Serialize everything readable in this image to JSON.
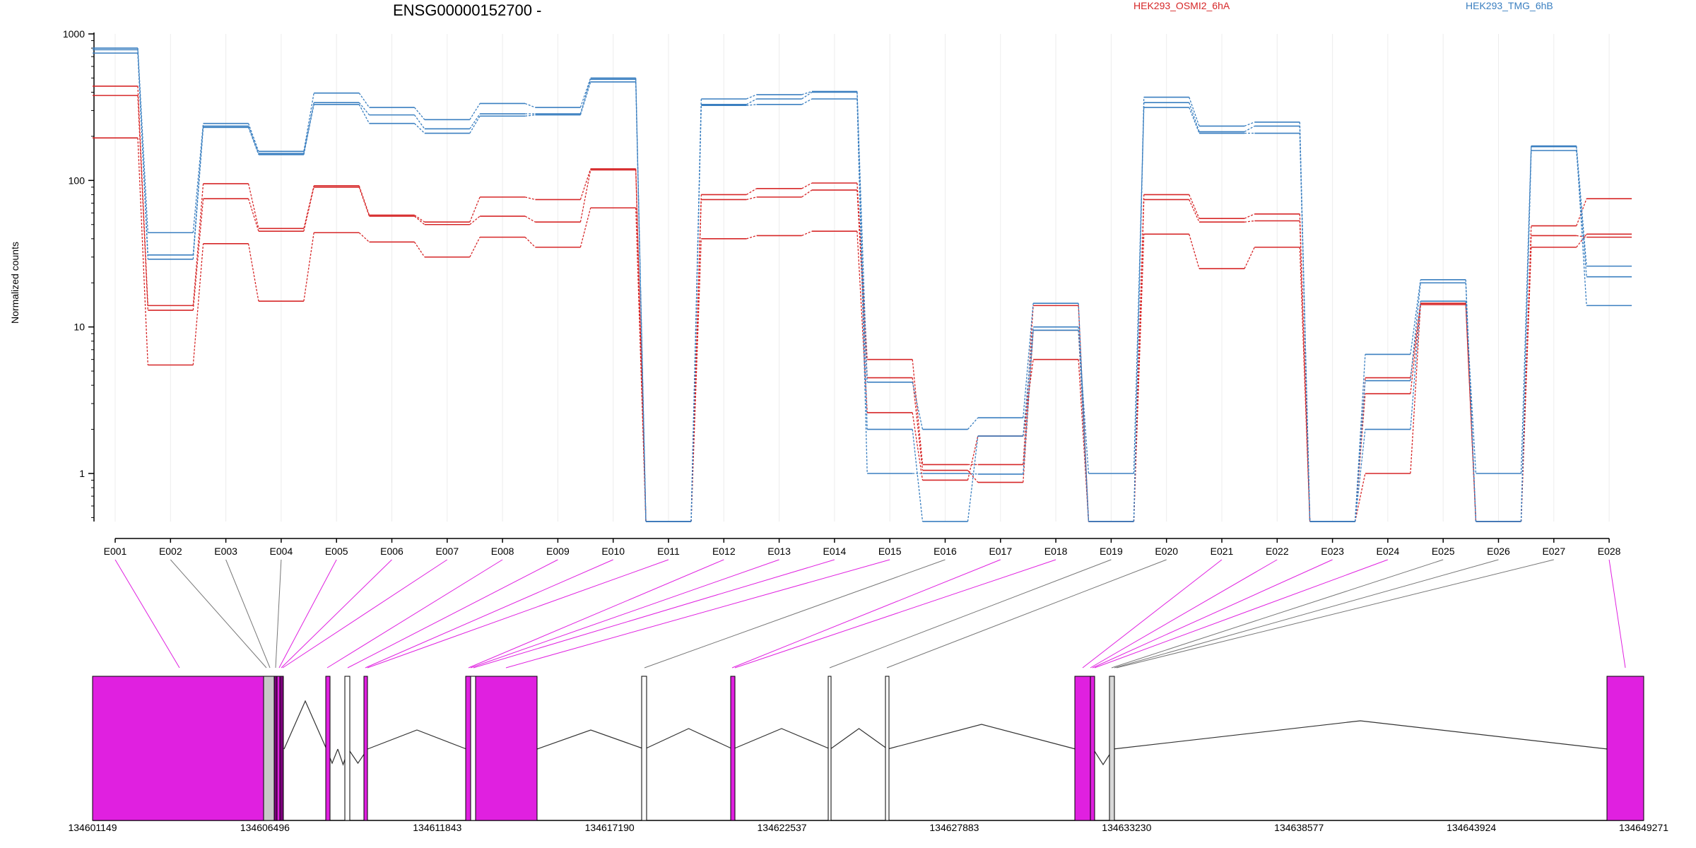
{
  "page": {
    "title": "ENSG00000152700 -",
    "legend": [
      {
        "label": "HEK293_OSMI2_6hA",
        "color": "#d62728"
      },
      {
        "label": "HEK293_TMG_6hB",
        "color": "#3a7fc0"
      }
    ]
  },
  "chart_data": [
    {
      "type": "line",
      "subtype": "step",
      "ylabel": "Normalized counts",
      "yscale": "log",
      "ylim": [
        0.4,
        1000
      ],
      "yticks": [
        "1000",
        "100",
        "10",
        "1"
      ],
      "grid": "vertical",
      "categories": [
        "E001",
        "E002",
        "E003",
        "E004",
        "E005",
        "E006",
        "E007",
        "E008",
        "E009",
        "E010",
        "E011",
        "E012",
        "E013",
        "E014",
        "E015",
        "E016",
        "E017",
        "E018",
        "E019",
        "E020",
        "E021",
        "E022",
        "E023",
        "E024",
        "E025",
        "E026",
        "E027",
        "E028"
      ],
      "series": [
        {
          "group": "HEK293_OSMI2_6hA",
          "color": "#d62728",
          "values": [
            440,
            14,
            95,
            47,
            92,
            58,
            52,
            77,
            74,
            120,
            0.47,
            80,
            88,
            96,
            6,
            1.15,
            1.15,
            14,
            0.47,
            80,
            55,
            59,
            0.47,
            4.5,
            14.5,
            0.47,
            49,
            75
          ]
        },
        {
          "group": "HEK293_OSMI2_6hA",
          "color": "#d62728",
          "values": [
            380,
            13,
            75,
            45,
            90,
            57,
            50,
            57,
            52,
            118,
            0.47,
            74,
            77,
            86,
            4.5,
            1.05,
            0.87,
            9.5,
            0.47,
            74,
            52,
            53,
            0.47,
            3.5,
            14.5,
            0.47,
            42,
            41
          ]
        },
        {
          "group": "HEK293_OSMI2_6hA",
          "color": "#d62728",
          "values": [
            195,
            5.5,
            37,
            15,
            44,
            38,
            30,
            41,
            35,
            65,
            0.47,
            40,
            42,
            45,
            2.6,
            0.9,
            1.8,
            6,
            0.47,
            43,
            25,
            35,
            0.47,
            1,
            14.2,
            0.47,
            35,
            43
          ]
        },
        {
          "group": "HEK293_TMG_6hB",
          "color": "#3a7fc0",
          "values": [
            800,
            44,
            245,
            158,
            395,
            315,
            260,
            335,
            315,
            500,
            0.47,
            360,
            385,
            405,
            4.2,
            2,
            2.4,
            14.5,
            0.47,
            370,
            235,
            250,
            0.47,
            6.5,
            21,
            0.47,
            172,
            26
          ]
        },
        {
          "group": "HEK293_TMG_6hB",
          "color": "#3a7fc0",
          "values": [
            780,
            31,
            235,
            153,
            340,
            280,
            225,
            285,
            285,
            490,
            0.47,
            330,
            360,
            400,
            2,
            0.47,
            1.8,
            10,
            0.47,
            340,
            215,
            235,
            0.47,
            4.3,
            20,
            0.47,
            160,
            22
          ]
        },
        {
          "group": "HEK293_TMG_6hB",
          "color": "#3a7fc0",
          "values": [
            740,
            29,
            230,
            150,
            330,
            245,
            210,
            275,
            280,
            470,
            0.47,
            325,
            330,
            360,
            1,
            1,
            0.99,
            9.5,
            1,
            315,
            210,
            210,
            0.47,
            2,
            15,
            1,
            170,
            14
          ]
        }
      ]
    },
    {
      "type": "gene_model",
      "xlim": [
        134601149,
        134649271
      ],
      "xticks": [
        "134601149",
        "134606496",
        "134611843",
        "134617190",
        "134622537",
        "134627883",
        "134633230",
        "134638577",
        "134643924",
        "134649271"
      ],
      "exon_mapping_colors": {
        "significant": "#e020e0",
        "not_significant": "#777777"
      }
    }
  ]
}
